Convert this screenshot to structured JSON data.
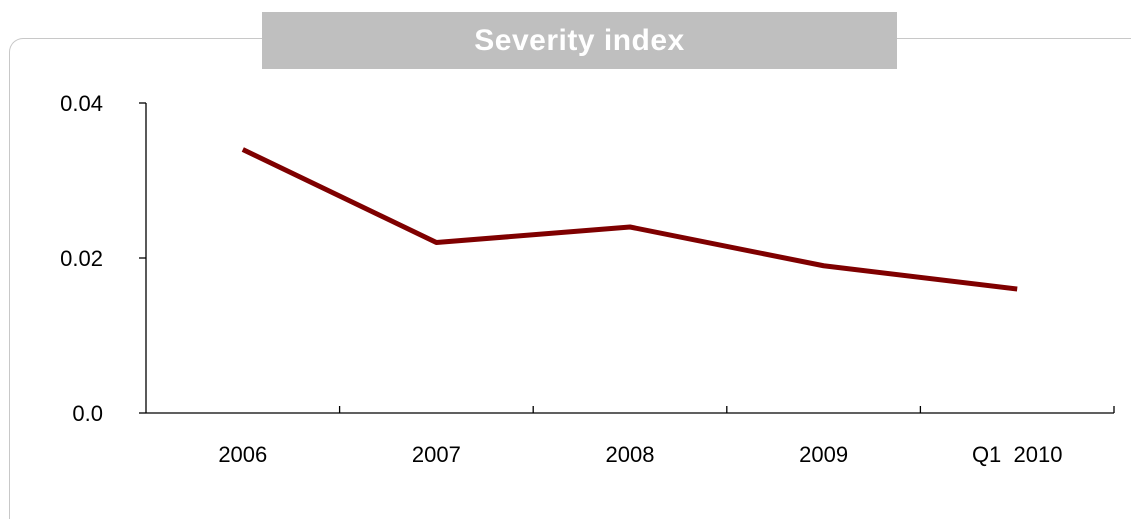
{
  "chart_data": {
    "type": "line",
    "title": "Severity index",
    "categories": [
      "2006",
      "2007",
      "2008",
      "2009",
      "Q1  2010"
    ],
    "series": [
      {
        "values": [
          0.034,
          0.022,
          0.024,
          0.019,
          0.016
        ]
      }
    ],
    "y_tick_labels": [
      "0.04",
      "0.02",
      "0.0"
    ],
    "y_tick_values": [
      0.04,
      0.02,
      0.0
    ],
    "ylim": [
      0,
      0.04
    ],
    "grid": false,
    "legend": "none",
    "colors": {
      "line": "#7f0000",
      "title_bg": "#bfbfbf",
      "title_text": "#ffffff",
      "axis": "#000000",
      "frame": "#c8c8c8"
    }
  }
}
